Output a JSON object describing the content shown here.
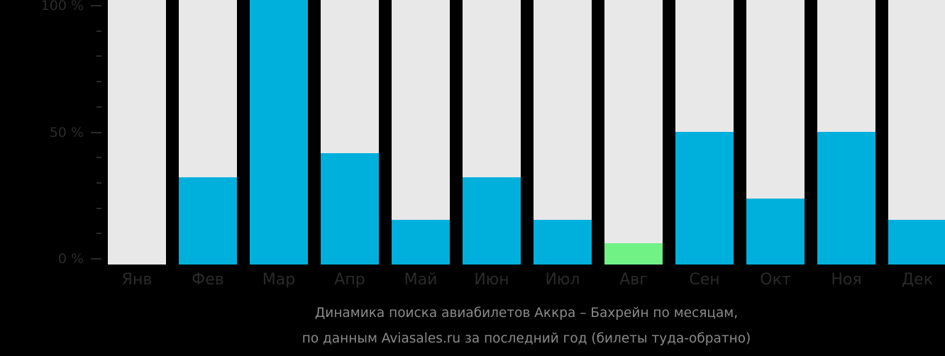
{
  "chart_data": {
    "type": "bar",
    "title": "Динамика поиска авиабилетов Аккра – Бахрейн по месяцам,",
    "subtitle": "по данным Aviasales.ru за последний год (билеты туда-обратно)",
    "xlabel": "",
    "ylabel": "",
    "ylim": [
      0,
      100
    ],
    "yticks": [
      "100 %",
      "50 %",
      "0 %"
    ],
    "categories": [
      "Янв",
      "Фев",
      "Мар",
      "Апр",
      "Май",
      "Июн",
      "Июл",
      "Авг",
      "Сен",
      "Окт",
      "Ноя",
      "Дек"
    ],
    "values": [
      0,
      33,
      100,
      42,
      17,
      33,
      17,
      8,
      50,
      25,
      50,
      17
    ],
    "highlight_index": 7,
    "colors": {
      "bar": "#00b0dc",
      "highlight": "#70f285",
      "background_bar": "#e8e8e8"
    },
    "grid": false,
    "legend": null
  }
}
